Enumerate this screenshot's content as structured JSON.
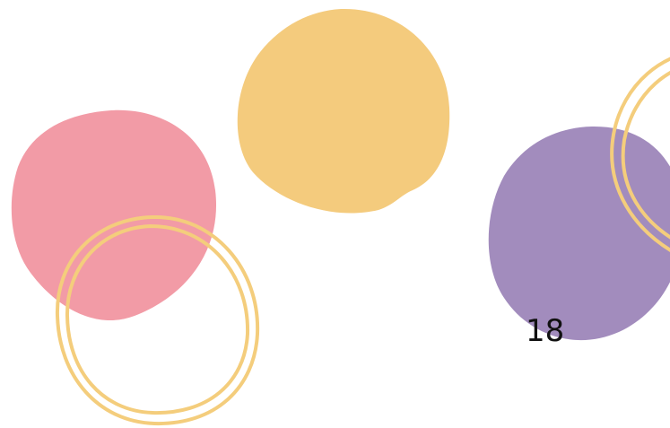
{
  "slide": {
    "page_number": "18"
  },
  "decorations": {
    "colors": {
      "pink_blob": "#F29BA6",
      "yellow_blob": "#F4CB7D",
      "purple_blob": "#A28CBD",
      "ring_outline": "#F4CD7C"
    },
    "shapes": [
      "pink-blob",
      "yellow-blob",
      "purple-blob",
      "double-ring-outline-left",
      "double-ring-outline-right"
    ]
  }
}
